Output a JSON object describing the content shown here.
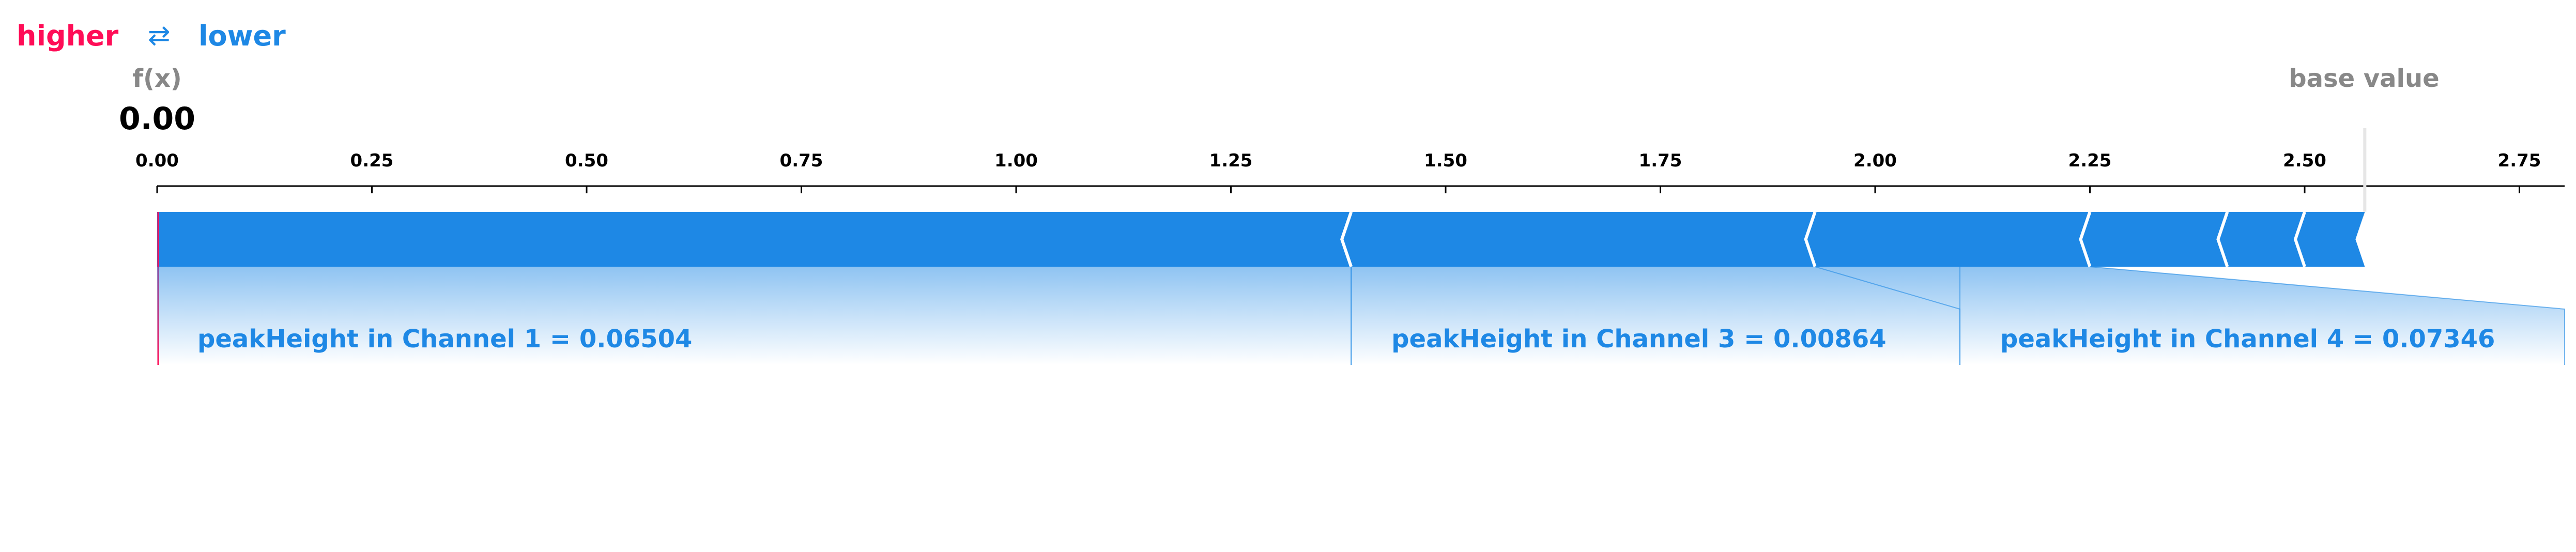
{
  "legend": {
    "higher_label": "higher",
    "lower_label": "lower",
    "arrows_glyph": "⇄",
    "higher_color": "#ff0d57",
    "lower_color": "#1e88e5"
  },
  "fx": {
    "label": "f(x)",
    "value_text": "0.00"
  },
  "base_value_label": "base value",
  "colors": {
    "negative_bar": "#1e88e5",
    "positive_marker": "#ff0d57",
    "label_gray": "#888888",
    "axis": "#000000"
  },
  "chart_data": {
    "type": "force-plot",
    "title": "",
    "xlim": [
      0,
      2.8
    ],
    "ticks": [
      0.0,
      0.25,
      0.5,
      0.75,
      1.0,
      1.25,
      1.5,
      1.75,
      2.0,
      2.25,
      2.5,
      2.75
    ],
    "tick_labels": [
      "0.00",
      "0.25",
      "0.50",
      "0.75",
      "1.00",
      "1.25",
      "1.50",
      "1.75",
      "2.00",
      "2.25",
      "2.50",
      "2.75"
    ],
    "output_value": 0.0,
    "base_value": 2.57,
    "segments": [
      {
        "from": 0.0,
        "to": 1.39,
        "label": "peakHeight in Channel 1 = 0.06504"
      },
      {
        "from": 1.39,
        "to": 1.93,
        "label": "peakHeight in Channel 3 = 0.00864"
      },
      {
        "from": 1.93,
        "to": 2.25,
        "label": "peakHeight in Channel 4 = 0.07346"
      },
      {
        "from": 2.25,
        "to": 2.41,
        "label": ""
      },
      {
        "from": 2.41,
        "to": 2.5,
        "label": ""
      },
      {
        "from": 2.5,
        "to": 2.57,
        "label": ""
      }
    ]
  }
}
